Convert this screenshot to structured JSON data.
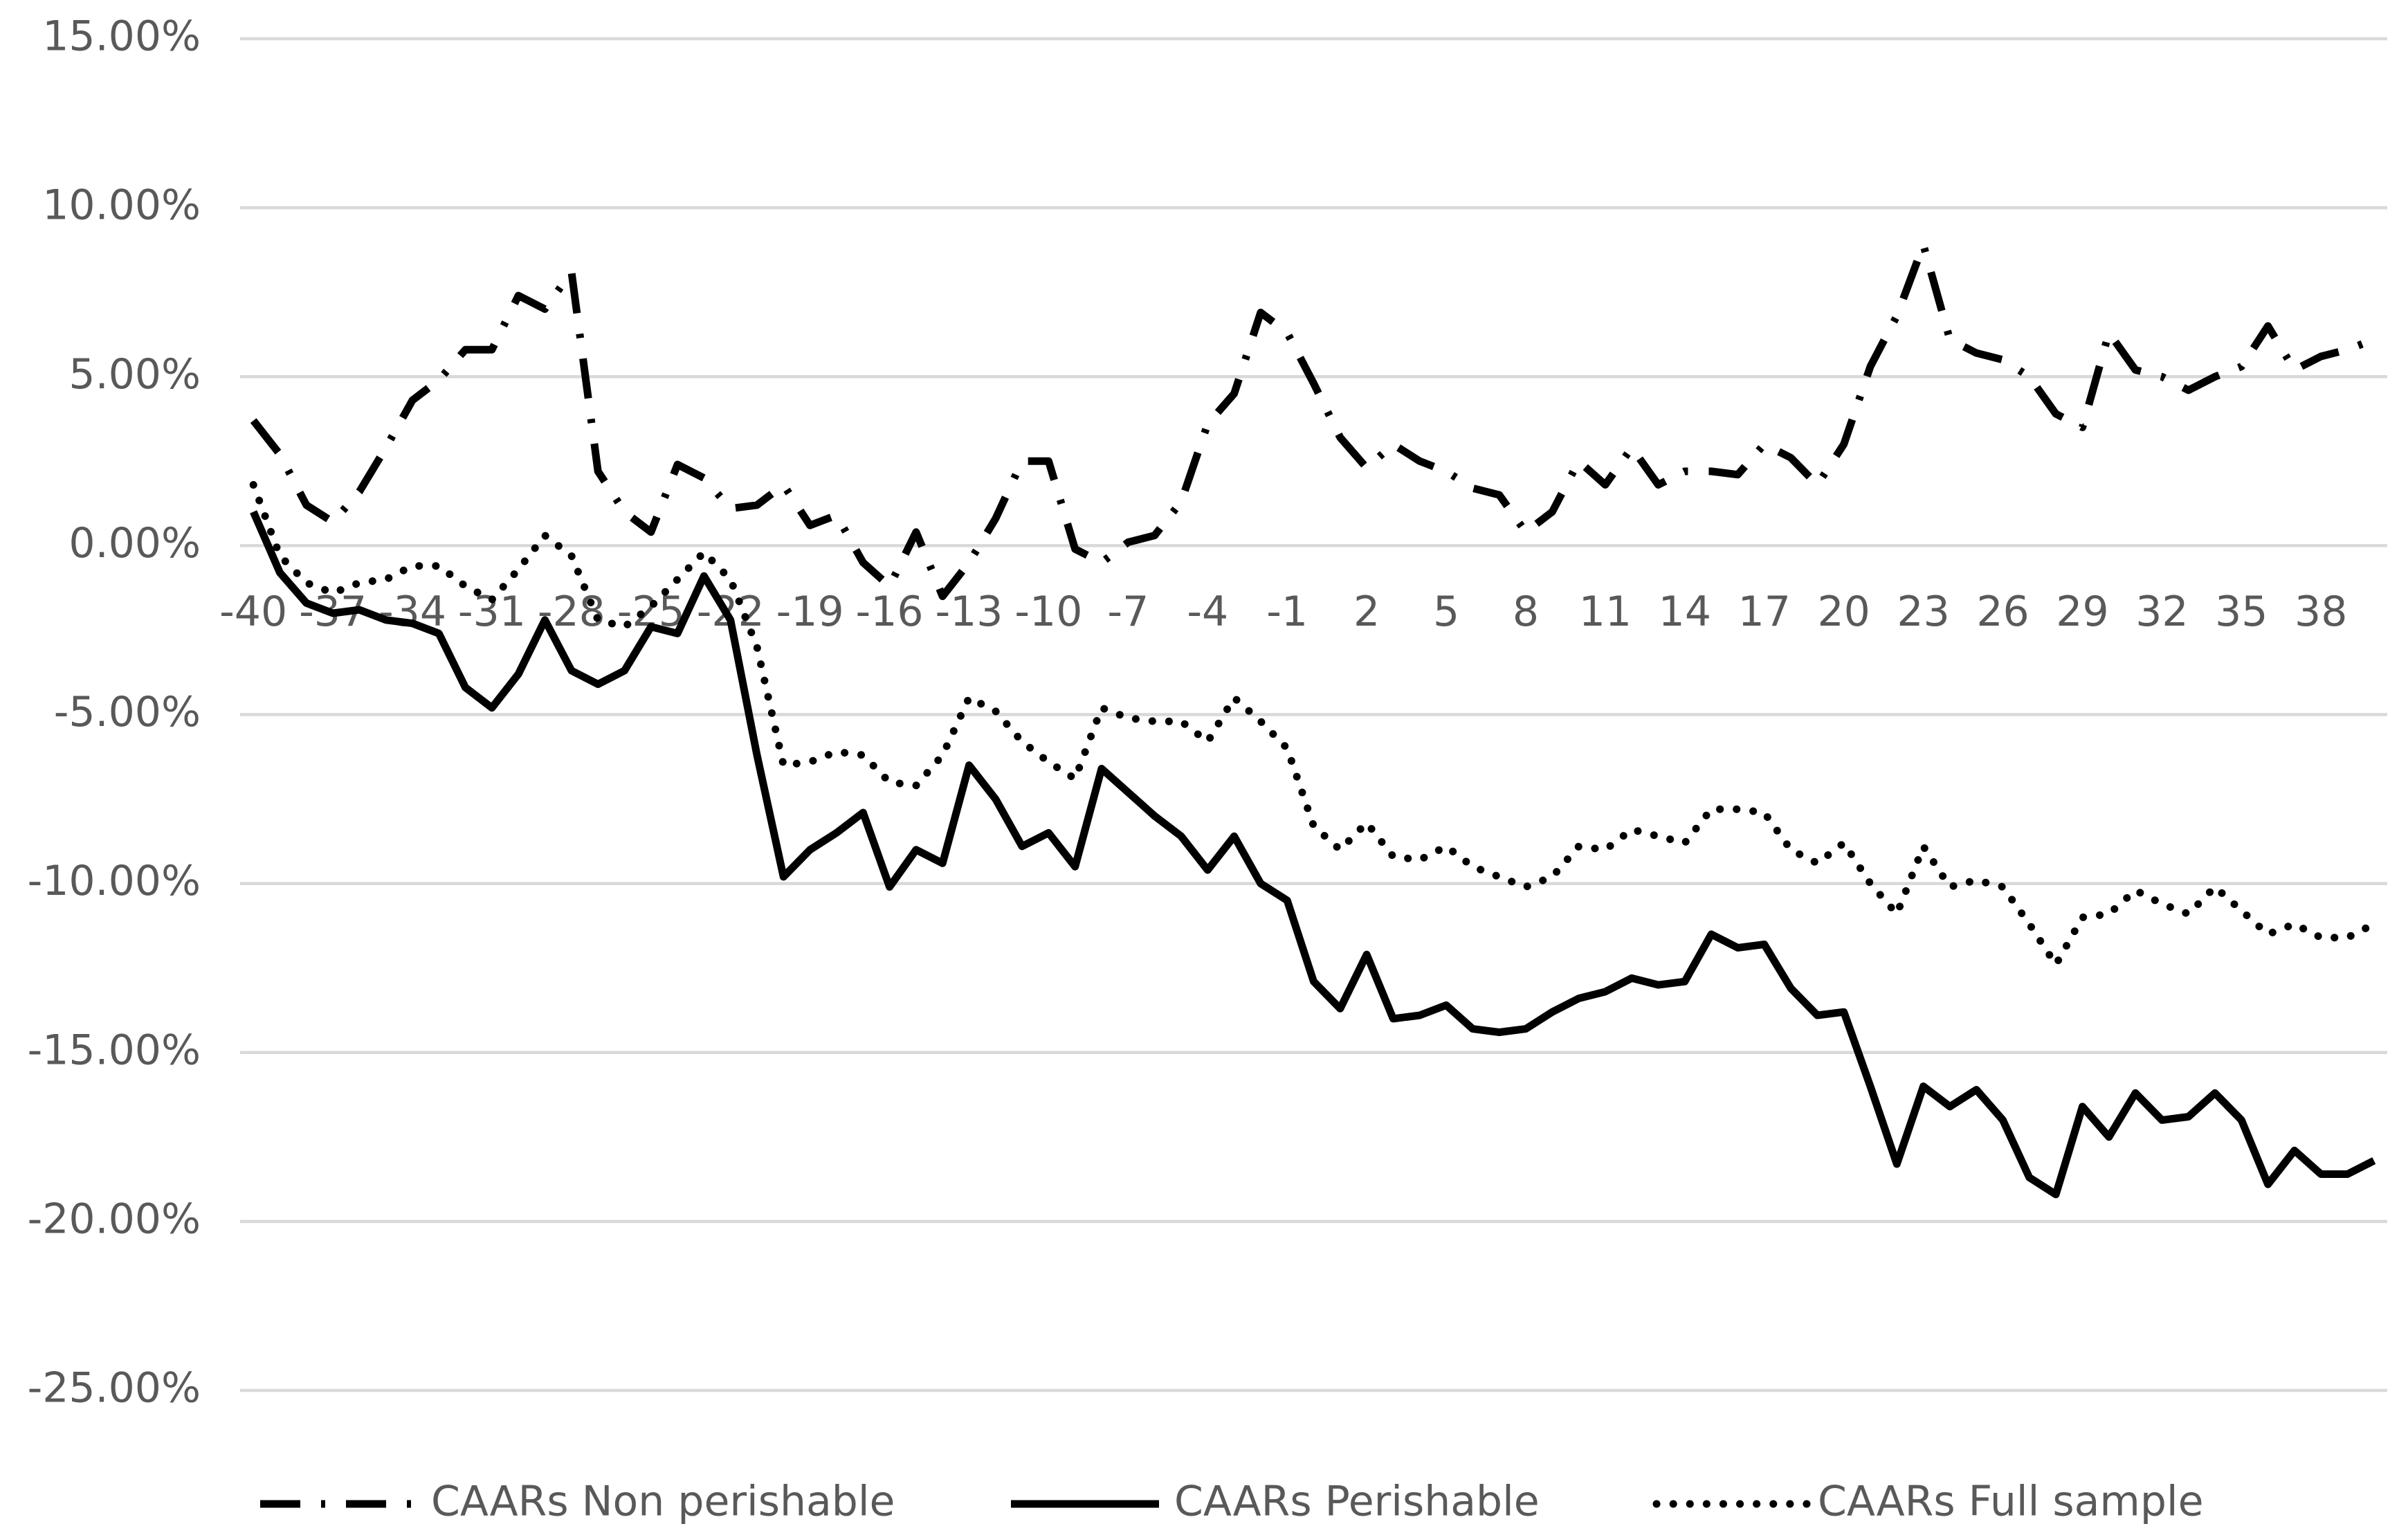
{
  "chart_data": {
    "type": "line",
    "categories": [
      -40,
      null,
      null,
      -37,
      null,
      null,
      -34,
      null,
      null,
      -31,
      null,
      null,
      -28,
      null,
      null,
      -25,
      null,
      null,
      -22,
      null,
      null,
      -19,
      null,
      null,
      -16,
      null,
      null,
      -13,
      null,
      null,
      -10,
      null,
      null,
      -7,
      null,
      null,
      -4,
      null,
      null,
      -1,
      null,
      null,
      2,
      null,
      null,
      5,
      null,
      null,
      8,
      null,
      null,
      11,
      null,
      null,
      14,
      null,
      null,
      17,
      null,
      null,
      20,
      null,
      null,
      23,
      null,
      null,
      26,
      null,
      null,
      29,
      null,
      null,
      32,
      null,
      null,
      35,
      null,
      null,
      38,
      null,
      null
    ],
    "series": [
      {
        "name": "CAARs Non perishable",
        "color": "#000000",
        "line_style": "dash-dot",
        "values": [
          3.7,
          2.7,
          1.2,
          0.7,
          1.6,
          2.9,
          4.3,
          4.9,
          5.8,
          5.8,
          7.4,
          7.0,
          8.1,
          2.2,
          1.0,
          0.4,
          2.4,
          2.0,
          1.1,
          1.2,
          1.8,
          0.6,
          0.9,
          -0.5,
          -1.2,
          0.4,
          -1.5,
          -0.5,
          0.8,
          2.5,
          2.5,
          -0.1,
          -0.5,
          0.1,
          0.3,
          1.3,
          3.6,
          4.5,
          6.9,
          6.3,
          4.8,
          3.2,
          2.3,
          3.0,
          2.5,
          2.2,
          1.7,
          1.5,
          0.4,
          1.0,
          2.5,
          1.8,
          2.9,
          1.8,
          2.2,
          2.2,
          2.1,
          3.0,
          2.6,
          1.8,
          3.0,
          5.3,
          6.8,
          8.9,
          6.1,
          5.7,
          5.5,
          5.0,
          3.9,
          3.5,
          6.3,
          5.2,
          5.0,
          4.6,
          5.0,
          5.3,
          6.5,
          5.2,
          5.6,
          5.8,
          6.1
        ]
      },
      {
        "name": "CAARs Perishable",
        "color": "#000000",
        "line_style": "solid",
        "values": [
          1.0,
          -0.8,
          -1.7,
          -2.0,
          -1.9,
          -2.2,
          -2.3,
          -2.6,
          -4.2,
          -4.8,
          -3.8,
          -2.2,
          -3.7,
          -4.1,
          -3.7,
          -2.4,
          -2.6,
          -0.9,
          -2.2,
          -6.2,
          -9.8,
          -9.0,
          -8.5,
          -7.9,
          -10.1,
          -9.0,
          -9.4,
          -6.5,
          -7.5,
          -8.9,
          -8.5,
          -9.5,
          -6.6,
          -7.3,
          -8.0,
          -8.6,
          -9.6,
          -8.6,
          -10.0,
          -10.5,
          -12.9,
          -13.7,
          -12.1,
          -14.0,
          -13.9,
          -13.6,
          -14.3,
          -14.4,
          -14.3,
          -13.8,
          -13.4,
          -13.2,
          -12.8,
          -13.0,
          -12.9,
          -11.5,
          -11.9,
          -11.8,
          -13.1,
          -13.9,
          -13.8,
          -16.0,
          -18.3,
          -16.0,
          -16.6,
          -16.1,
          -17.0,
          -18.7,
          -19.2,
          -16.6,
          -17.5,
          -16.2,
          -17.0,
          -16.9,
          -16.2,
          -17.0,
          -18.9,
          -17.9,
          -18.6,
          -18.6,
          -18.2
        ]
      },
      {
        "name": "CAARs Full sample",
        "color": "#000000",
        "line_style": "dot",
        "values": [
          1.8,
          -0.3,
          -1.1,
          -1.4,
          -1.1,
          -1.0,
          -0.6,
          -0.6,
          -1.2,
          -1.6,
          -0.7,
          0.3,
          -0.3,
          -2.2,
          -2.4,
          -1.8,
          -1.0,
          -0.2,
          -1.0,
          -3.0,
          -6.5,
          -6.4,
          -6.1,
          -6.2,
          -7.0,
          -7.1,
          -6.2,
          -4.5,
          -4.9,
          -5.8,
          -6.4,
          -6.9,
          -4.8,
          -5.1,
          -5.2,
          -5.2,
          -5.8,
          -4.5,
          -5.2,
          -6.0,
          -8.3,
          -9.0,
          -8.2,
          -9.2,
          -9.3,
          -8.9,
          -9.5,
          -9.8,
          -10.1,
          -9.8,
          -8.9,
          -9.0,
          -8.4,
          -8.6,
          -8.8,
          -7.8,
          -7.8,
          -7.9,
          -9.0,
          -9.4,
          -8.8,
          -10.0,
          -10.9,
          -8.9,
          -10.1,
          -9.9,
          -10.1,
          -11.2,
          -12.4,
          -11.0,
          -10.9,
          -10.2,
          -10.6,
          -10.9,
          -10.1,
          -10.8,
          -11.5,
          -11.2,
          -11.6,
          -11.6,
          -11.2
        ]
      }
    ],
    "ylim": [
      -25,
      15
    ],
    "yticks": [
      {
        "value": -25,
        "label": "-25.00%"
      },
      {
        "value": -20,
        "label": "-20.00%"
      },
      {
        "value": -15,
        "label": "-15.00%"
      },
      {
        "value": -10,
        "label": "-10.00%"
      },
      {
        "value": -5,
        "label": "-5.00%"
      },
      {
        "value": 0,
        "label": "0.00%"
      },
      {
        "value": 5,
        "label": "5.00%"
      },
      {
        "value": 10,
        "label": "10.00%"
      },
      {
        "value": 15,
        "label": "15.00%"
      }
    ],
    "grid": true,
    "legend": "bottom"
  }
}
